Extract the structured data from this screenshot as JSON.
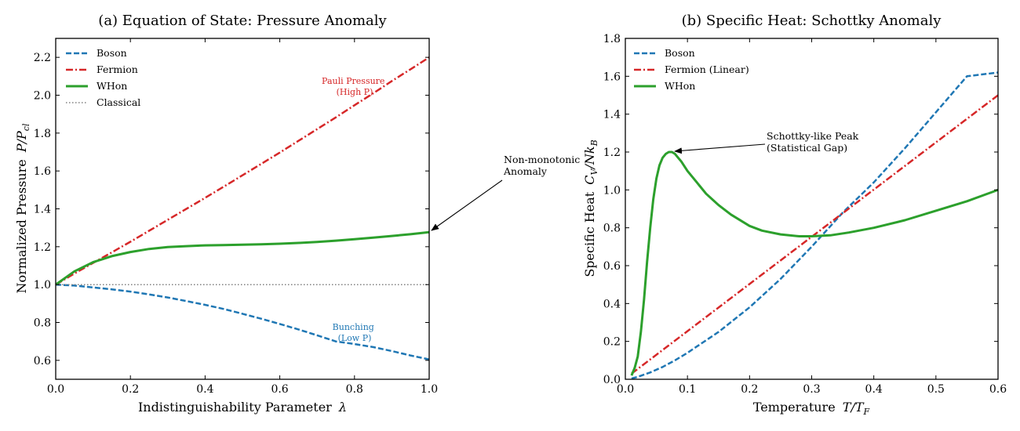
{
  "chart_data": [
    {
      "type": "line",
      "title": "(a) Equation of State: Pressure Anomaly",
      "xlabel": "Indistinguishability Parameter",
      "xlabel_symbol": "λ",
      "ylabel": "Normalized Pressure",
      "ylabel_symbol_main": "P/P",
      "ylabel_symbol_sub": "cl",
      "xlim": [
        0.0,
        1.0
      ],
      "ylim": [
        0.5,
        2.3
      ],
      "xticks": [
        0.0,
        0.2,
        0.4,
        0.6,
        0.8,
        1.0
      ],
      "xtick_labels": [
        "0.0",
        "0.2",
        "0.4",
        "0.6",
        "0.8",
        "1.0"
      ],
      "yticks": [
        0.6,
        0.8,
        1.0,
        1.2,
        1.4,
        1.6,
        1.8,
        2.0,
        2.2
      ],
      "ytick_labels": [
        "0.6",
        "0.8",
        "1.0",
        "1.2",
        "1.4",
        "1.6",
        "1.8",
        "2.0",
        "2.2"
      ],
      "grid": false,
      "legend_position": "top-left",
      "x": [
        0.0,
        0.05,
        0.1,
        0.15,
        0.2,
        0.25,
        0.3,
        0.35,
        0.4,
        0.45,
        0.5,
        0.55,
        0.6,
        0.65,
        0.7,
        0.75,
        0.8,
        0.85,
        0.9,
        0.95,
        1.0
      ],
      "series": [
        {
          "name": "Boson",
          "color": "#1f77b4",
          "style": "dashed",
          "values": [
            1.0,
            0.995,
            0.985,
            0.975,
            0.963,
            0.948,
            0.932,
            0.913,
            0.893,
            0.871,
            0.846,
            0.82,
            0.792,
            0.763,
            0.732,
            0.7,
            0.686,
            0.67,
            0.649,
            0.626,
            0.605
          ]
        },
        {
          "name": "Fermion",
          "color": "#d62728",
          "style": "dashdot",
          "values": [
            1.0,
            1.058,
            1.114,
            1.17,
            1.226,
            1.284,
            1.342,
            1.4,
            1.458,
            1.517,
            1.577,
            1.637,
            1.697,
            1.759,
            1.821,
            1.883,
            1.947,
            2.01,
            2.075,
            2.137,
            2.2
          ]
        },
        {
          "name": "WHon",
          "color": "#2ca02c",
          "style": "solid",
          "values": [
            1.0,
            1.07,
            1.118,
            1.15,
            1.172,
            1.188,
            1.198,
            1.203,
            1.207,
            1.209,
            1.211,
            1.213,
            1.216,
            1.22,
            1.225,
            1.232,
            1.24,
            1.248,
            1.257,
            1.266,
            1.277
          ]
        },
        {
          "name": "Classical",
          "color": "#808080",
          "style": "dotted",
          "values": [
            1.0,
            1.0,
            1.0,
            1.0,
            1.0,
            1.0,
            1.0,
            1.0,
            1.0,
            1.0,
            1.0,
            1.0,
            1.0,
            1.0,
            1.0,
            1.0,
            1.0,
            1.0,
            1.0,
            1.0,
            1.0
          ]
        }
      ],
      "annotations": [
        {
          "lines": [
            "Pauli Pressure",
            "(High P)"
          ],
          "x": 0.8,
          "y": 2.03,
          "color": "#d62728"
        },
        {
          "lines": [
            "Bunching",
            "(Low P)"
          ],
          "x": 0.8,
          "y": 0.73,
          "color": "#1f77b4"
        },
        {
          "lines": [
            "Non-monotonic",
            "Anomaly"
          ],
          "text_x": 1.2,
          "text_y": 1.63,
          "arrow_to_x": 1.0,
          "arrow_to_y": 1.277,
          "arrow_from_x": 1.19,
          "arrow_from_y": 1.56,
          "color": "#000000"
        }
      ]
    },
    {
      "type": "line",
      "title": "(b) Specific Heat: Schottky Anomaly",
      "xlabel": "Temperature",
      "xlabel_symbol_main": "T/T",
      "xlabel_symbol_sub": "F",
      "ylabel": "Specific Heat",
      "ylabel_symbol_main": "C",
      "ylabel_symbol_sub1": "V",
      "ylabel_symbol_mid": "/Nk",
      "ylabel_symbol_sub2": "B",
      "xlim": [
        0.0,
        0.6
      ],
      "ylim": [
        0.0,
        1.8
      ],
      "xticks": [
        0.0,
        0.1,
        0.2,
        0.3,
        0.4,
        0.5,
        0.6
      ],
      "xtick_labels": [
        "0.0",
        "0.1",
        "0.2",
        "0.3",
        "0.4",
        "0.5",
        "0.6"
      ],
      "yticks": [
        0.0,
        0.2,
        0.4,
        0.6,
        0.8,
        1.0,
        1.2,
        1.4,
        1.6,
        1.8
      ],
      "ytick_labels": [
        "0.0",
        "0.2",
        "0.4",
        "0.6",
        "0.8",
        "1.0",
        "1.2",
        "1.4",
        "1.6",
        "1.8"
      ],
      "grid": false,
      "legend_position": "top-left",
      "series": [
        {
          "name": "Boson",
          "color": "#1f77b4",
          "style": "dashed",
          "x": [
            0.01,
            0.02,
            0.04,
            0.06,
            0.08,
            0.1,
            0.15,
            0.2,
            0.25,
            0.3,
            0.35,
            0.4,
            0.45,
            0.5,
            0.55,
            0.6
          ],
          "values": [
            0.004,
            0.013,
            0.036,
            0.065,
            0.1,
            0.14,
            0.25,
            0.38,
            0.53,
            0.7,
            0.88,
            1.04,
            1.22,
            1.41,
            1.6,
            1.62
          ]
        },
        {
          "name": "Fermion (Linear)",
          "color": "#d62728",
          "style": "dashdot",
          "x": [
            0.01,
            0.6
          ],
          "values": [
            0.03,
            1.5
          ]
        },
        {
          "name": "WHon",
          "color": "#2ca02c",
          "style": "solid",
          "x": [
            0.01,
            0.015,
            0.02,
            0.025,
            0.03,
            0.035,
            0.04,
            0.045,
            0.05,
            0.055,
            0.06,
            0.065,
            0.07,
            0.075,
            0.08,
            0.085,
            0.09,
            0.1,
            0.11,
            0.12,
            0.13,
            0.15,
            0.17,
            0.2,
            0.22,
            0.25,
            0.28,
            0.3,
            0.33,
            0.36,
            0.4,
            0.45,
            0.5,
            0.55,
            0.6
          ],
          "values": [
            0.02,
            0.06,
            0.12,
            0.25,
            0.42,
            0.62,
            0.8,
            0.95,
            1.06,
            1.13,
            1.17,
            1.19,
            1.2,
            1.2,
            1.19,
            1.17,
            1.15,
            1.1,
            1.06,
            1.02,
            0.98,
            0.92,
            0.87,
            0.81,
            0.785,
            0.765,
            0.755,
            0.755,
            0.76,
            0.775,
            0.8,
            0.84,
            0.89,
            0.94,
            1.0
          ]
        }
      ],
      "annotations": [
        {
          "lines": [
            "Schottky-like Peak",
            "(Statistical Gap)"
          ],
          "text_x": 0.228,
          "text_y": 1.27,
          "arrow_to_x": 0.08,
          "arrow_to_y": 1.2,
          "arrow_from_x": 0.227,
          "arrow_from_y": 1.235,
          "color": "#000000"
        }
      ]
    }
  ]
}
